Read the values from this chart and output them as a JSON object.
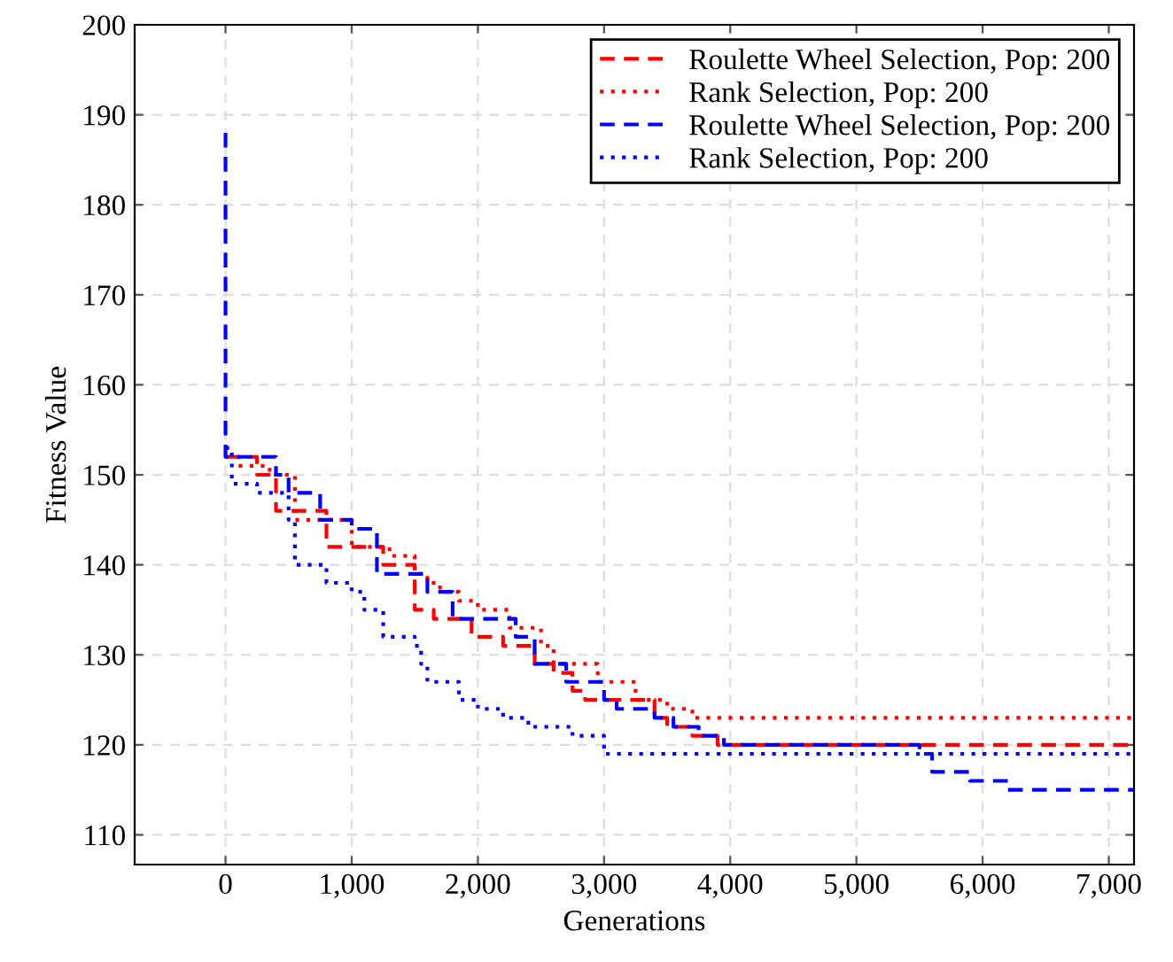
{
  "chart_data": {
    "type": "step",
    "xlabel": "Generations",
    "ylabel": "Fitness Value",
    "xlim": [
      -720,
      7200
    ],
    "ylim": [
      106.7,
      200
    ],
    "xticks": [
      0,
      {
        "value": 1000,
        "label": "1,000"
      },
      {
        "value": 2000,
        "label": "2,000"
      },
      {
        "value": 3000,
        "label": "3,000"
      },
      {
        "value": 4000,
        "label": "4,000"
      },
      {
        "value": 5000,
        "label": "5,000"
      },
      {
        "value": 6000,
        "label": "6,000"
      },
      {
        "value": 7000,
        "label": "7,000"
      }
    ],
    "yticks": [
      110,
      120,
      130,
      140,
      150,
      160,
      170,
      180,
      190,
      200
    ],
    "grid": true,
    "legend": "top right",
    "marker": "none",
    "series": [
      {
        "name": "Roulette Wheel Selection, Pop: 200",
        "color": "#ff0000",
        "line_style": "dashed",
        "x": [
          0,
          250,
          400,
          800,
          1250,
          1500,
          1650,
          1950,
          2200,
          2450,
          2600,
          2750,
          2850,
          3200,
          3400,
          3500,
          3700,
          3900,
          7200
        ],
        "values": [
          152,
          150,
          146,
          142,
          140,
          135,
          134,
          132,
          131,
          129,
          128,
          126,
          125,
          125,
          123,
          122,
          121,
          120,
          120
        ]
      },
      {
        "name": "Rank Selection, Pop: 200",
        "color": "#ff0000",
        "line_style": "dotted",
        "x": [
          0,
          100,
          350,
          550,
          1000,
          1300,
          1500,
          1600,
          1700,
          1850,
          2000,
          2250,
          2500,
          2600,
          2950,
          3250,
          3500,
          3700,
          7200
        ],
        "values": [
          152,
          151,
          150,
          145,
          142,
          141,
          139,
          138,
          137,
          136,
          135,
          133,
          131,
          129,
          127,
          125,
          124,
          123,
          123
        ]
      },
      {
        "name": "Roulette Wheel Selection, Pop: 200",
        "color": "#0000ff",
        "line_style": "dashed",
        "x": [
          0,
          0,
          350,
          400,
          500,
          750,
          1000,
          1200,
          1600,
          1800,
          2250,
          2300,
          2450,
          2700,
          3000,
          3100,
          3400,
          3550,
          3750,
          3950,
          5500,
          5600,
          5900,
          6200,
          7200
        ],
        "values": [
          188,
          152,
          152,
          150,
          148,
          145,
          144,
          139,
          137,
          134,
          134,
          132,
          129,
          127,
          125,
          124,
          123,
          122,
          121,
          120,
          119,
          117,
          116,
          115,
          115
        ]
      },
      {
        "name": "Rank Selection, Pop: 200",
        "color": "#0000ff",
        "line_style": "dotted",
        "x": [
          0,
          50,
          250,
          500,
          550,
          800,
          1000,
          1100,
          1250,
          1500,
          1550,
          1600,
          1850,
          2000,
          2200,
          2400,
          2750,
          3000,
          7200
        ],
        "values": [
          153,
          149,
          148,
          145,
          140,
          138,
          137,
          135,
          132,
          131,
          129,
          127,
          125,
          124,
          123,
          122,
          121,
          119,
          119
        ]
      }
    ]
  }
}
